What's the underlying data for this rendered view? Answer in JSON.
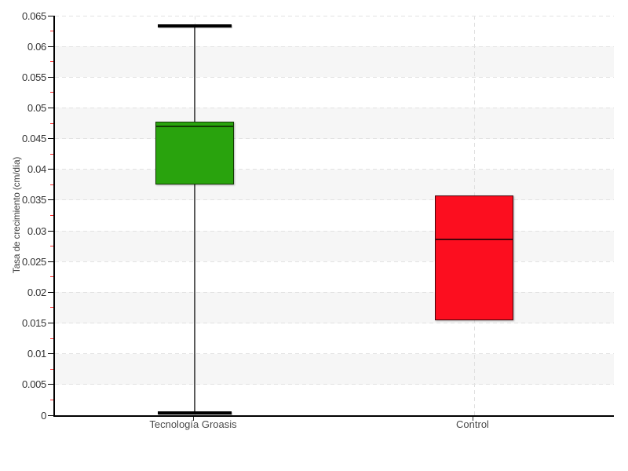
{
  "chart_data": {
    "type": "boxplot",
    "title": "",
    "xlabel": "",
    "ylabel": "Tasa de crecimiento (cm/día)",
    "categories": [
      "Tecnología Groasis",
      "Control"
    ],
    "ylim": [
      0,
      0.065
    ],
    "ytick_step": 0.005,
    "yminor_step": 0.0025,
    "ytick_labels": [
      "0",
      "0.005",
      "0.01",
      "0.015",
      "0.02",
      "0.025",
      "0.03",
      "0.035",
      "0.04",
      "0.045",
      "0.05",
      "0.055",
      "0.06",
      "0.065"
    ],
    "grid": "horizontal dashed gridlines every 0.005, vertical dashed gridline per category, alternating light-gray bands",
    "legend": "none",
    "series": [
      {
        "name": "Tecnología Groasis",
        "low": 0.0003,
        "q1": 0.0375,
        "median": 0.047,
        "q3": 0.0477,
        "high": 0.0633,
        "fill": "#29a30d",
        "border": "#123c03"
      },
      {
        "name": "Control",
        "low": 0.0154,
        "q1": 0.0154,
        "median": 0.0286,
        "q3": 0.0357,
        "high": 0.0357,
        "fill": "#fc0e1f",
        "border": "#47040a"
      }
    ]
  },
  "colors": {
    "background": "#ffffff",
    "band": "#f6f6f6",
    "gridline": "#e2e2e2",
    "axis": "#000000",
    "major_tick": "#000000",
    "minor_tick": "#ff2a2a",
    "tick_label": "#333333",
    "category_label": "#4a4a4a",
    "axis_title": "#444444",
    "whisker": "#5a5a5a",
    "cap": "#000000"
  }
}
